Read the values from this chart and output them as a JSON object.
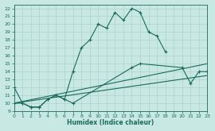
{
  "xlabel": "Humidex (Indice chaleur)",
  "xlim": [
    0,
    23
  ],
  "ylim": [
    9,
    22.5
  ],
  "xticks": [
    0,
    1,
    2,
    3,
    4,
    5,
    6,
    7,
    8,
    9,
    10,
    11,
    12,
    13,
    14,
    15,
    16,
    17,
    18,
    19,
    20,
    21,
    22,
    23
  ],
  "yticks": [
    9,
    10,
    11,
    12,
    13,
    14,
    15,
    16,
    17,
    18,
    19,
    20,
    21,
    22
  ],
  "bg_color": "#c8e8e4",
  "line_color": "#1a6b5a",
  "grid_color": "#b0d0cc",
  "line1_x": [
    0,
    1,
    2,
    3,
    4,
    5,
    6,
    7,
    8,
    9,
    10,
    11,
    12,
    13,
    14,
    15,
    16,
    17,
    18
  ],
  "line1_y": [
    12,
    10,
    9.5,
    9.5,
    10.5,
    11,
    10.5,
    14,
    17,
    18,
    20,
    19.5,
    21.5,
    20.5,
    22,
    21.5,
    19,
    18.5,
    16.5
  ],
  "line2_x": [
    0,
    1,
    2,
    3,
    4,
    5,
    6,
    7,
    14,
    15,
    20,
    21,
    22,
    23
  ],
  "line2_y": [
    10,
    10,
    9.5,
    9.5,
    10.5,
    11,
    10.5,
    10,
    14.5,
    15,
    14.5,
    12.5,
    14,
    14
  ],
  "line3_x": [
    0,
    23
  ],
  "line3_y": [
    10,
    15
  ],
  "line4_x": [
    0,
    23
  ],
  "line4_y": [
    10,
    13.5
  ]
}
